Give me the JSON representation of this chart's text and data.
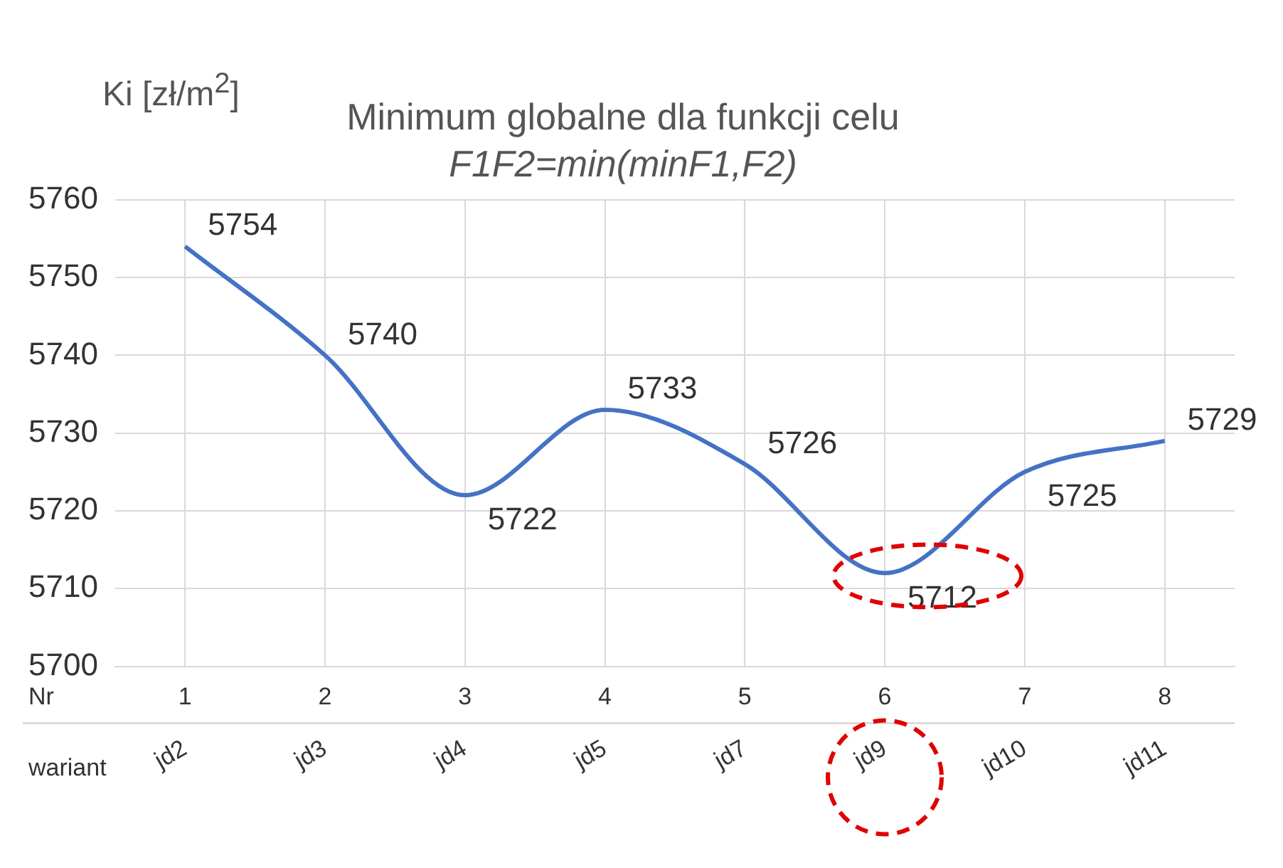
{
  "chart_data": {
    "type": "line",
    "title": "Minimum globalne dla funkcji celu",
    "subtitle": "F1F2=min(minF1,F2)",
    "ylabel": "Ki [zł/m$^{2}$]",
    "xlabel": "wariant",
    "categories": [
      "jd2",
      "jd3",
      "jd4",
      "jd5",
      "jd7",
      "jd9",
      "jd10",
      "jd11"
    ],
    "series": [
      {
        "color": "#4472c4",
        "values": [
          5754,
          5740,
          5722,
          5733,
          5726,
          5712,
          5725,
          5729
        ]
      }
    ],
    "ylim": [
      5700,
      5760
    ],
    "yticks": [
      5700,
      5710,
      5720,
      5730,
      5740,
      5750,
      5760
    ],
    "grid": true,
    "legend": false,
    "marker": "none",
    "data_labels": true,
    "annotations": [
      "Nr",
      "1",
      "2",
      "3",
      "4",
      "5",
      "6",
      "7",
      "8"
    ]
  }
}
